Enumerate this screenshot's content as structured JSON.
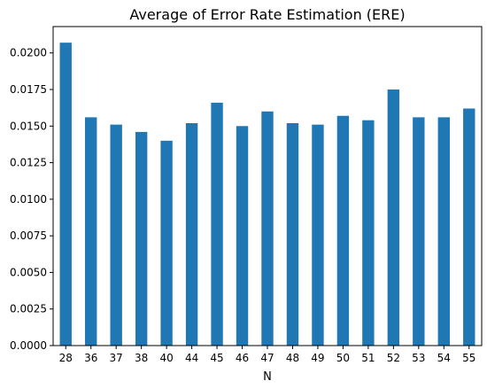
{
  "chart_data": {
    "type": "bar",
    "title": "Average of Error Rate Estimation (ERE)",
    "xlabel": "N",
    "ylabel": "",
    "categories": [
      "28",
      "36",
      "37",
      "38",
      "40",
      "44",
      "45",
      "46",
      "47",
      "48",
      "49",
      "50",
      "51",
      "52",
      "53",
      "54",
      "55"
    ],
    "values": [
      0.0207,
      0.0156,
      0.0151,
      0.0146,
      0.014,
      0.0152,
      0.0166,
      0.015,
      0.016,
      0.0152,
      0.0151,
      0.0157,
      0.0154,
      0.0175,
      0.0156,
      0.0156,
      0.0162
    ],
    "ylim": [
      0,
      0.0218
    ],
    "yticks": [
      "0.0000",
      "0.0025",
      "0.0050",
      "0.0075",
      "0.0100",
      "0.0125",
      "0.0150",
      "0.0175",
      "0.0200"
    ],
    "grid": false,
    "legend": "none",
    "bar_color": "#1f77b4"
  }
}
